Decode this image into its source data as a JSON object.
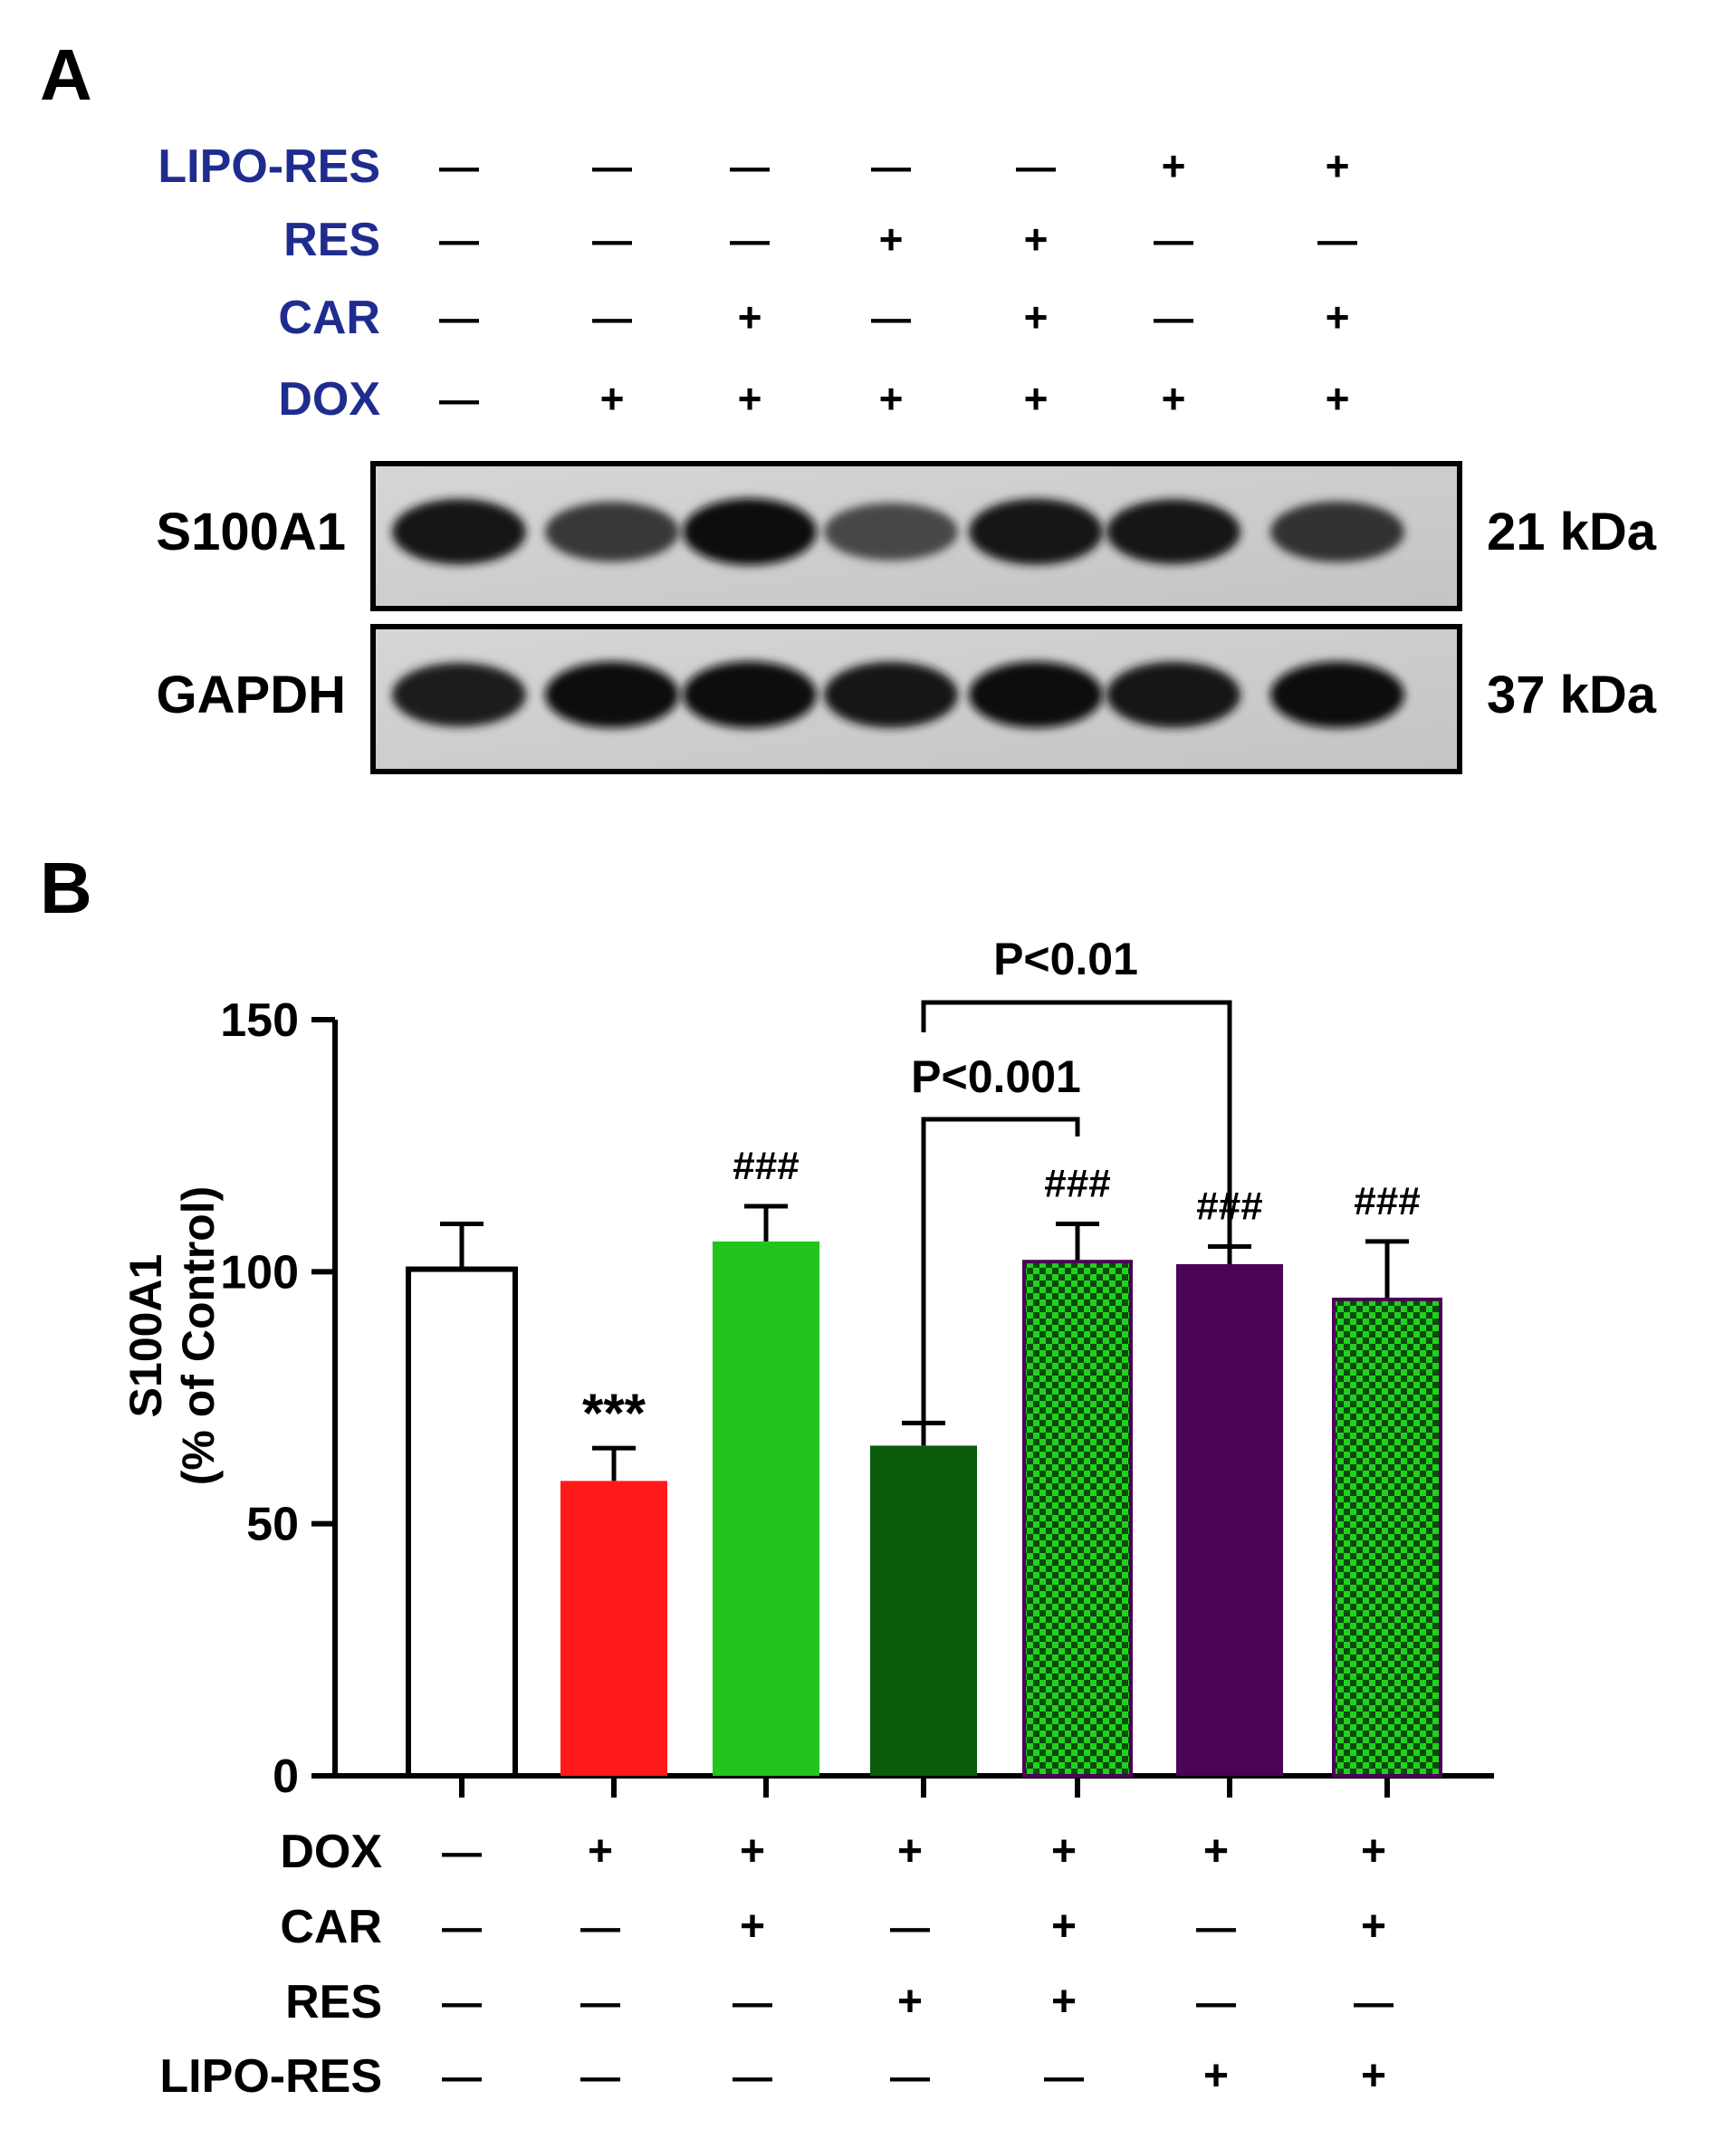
{
  "colors": {
    "label_blue": "#1f2c8f",
    "black": "#000000",
    "red": "#ff1a1a",
    "light_green": "#22c41e",
    "dark_green": "#0a5c0c",
    "purple": "#4a0356",
    "checker_green": "#22d11e",
    "checker_dark": "#0a4a0a"
  },
  "panel_a": {
    "panel_label": "A",
    "treatments": [
      {
        "name": "LIPO-RES",
        "marks": [
          "—",
          "—",
          "—",
          "—",
          "—",
          "+",
          "+"
        ]
      },
      {
        "name": "RES",
        "marks": [
          "—",
          "—",
          "—",
          "+",
          "+",
          "—",
          "—"
        ]
      },
      {
        "name": "CAR",
        "marks": [
          "—",
          "—",
          "+",
          "—",
          "+",
          "—",
          "+"
        ]
      },
      {
        "name": "DOX",
        "marks": [
          "—",
          "+",
          "+",
          "+",
          "+",
          "+",
          "+"
        ]
      }
    ],
    "blots": [
      {
        "protein": "S100A1",
        "size": "21 kDa",
        "band_intensity": [
          0.92,
          0.78,
          0.95,
          0.72,
          0.93,
          0.9,
          0.8
        ]
      },
      {
        "protein": "GAPDH",
        "size": "37 kDa",
        "band_intensity": [
          0.88,
          0.94,
          0.95,
          0.93,
          0.94,
          0.93,
          0.94
        ]
      }
    ]
  },
  "panel_b": {
    "panel_label": "B",
    "comparisons": [
      {
        "text": "P<0.01",
        "from_group": 4,
        "to_group": 6
      },
      {
        "text": "P<0.001",
        "from_group": 4,
        "to_group": 5
      }
    ],
    "treatments": [
      {
        "name": "DOX",
        "marks": [
          "—",
          "+",
          "+",
          "+",
          "+",
          "+",
          "+"
        ]
      },
      {
        "name": "CAR",
        "marks": [
          "—",
          "—",
          "+",
          "—",
          "+",
          "—",
          "+"
        ]
      },
      {
        "name": "RES",
        "marks": [
          "—",
          "—",
          "—",
          "+",
          "+",
          "—",
          "—"
        ]
      },
      {
        "name": "LIPO-RES",
        "marks": [
          "—",
          "—",
          "—",
          "—",
          "—",
          "+",
          "+"
        ]
      }
    ]
  },
  "chart_data": {
    "type": "bar",
    "ylabel_line1": "S100A1",
    "ylabel_line2": "(% of Control)",
    "ylim": [
      0,
      150
    ],
    "yticks": [
      0,
      50,
      100,
      150
    ],
    "grid": false,
    "bars": [
      {
        "value": 100.5,
        "error": 9,
        "fill": "white",
        "annotation": ""
      },
      {
        "value": 58.5,
        "error": 6.5,
        "fill": "red",
        "annotation": "***"
      },
      {
        "value": 106,
        "error": 7,
        "fill": "light_green",
        "annotation": "###"
      },
      {
        "value": 65.5,
        "error": 4.5,
        "fill": "dark_green",
        "annotation": ""
      },
      {
        "value": 102,
        "error": 7.5,
        "fill": "checker",
        "annotation": "###"
      },
      {
        "value": 101.5,
        "error": 3.5,
        "fill": "purple",
        "annotation": "###"
      },
      {
        "value": 94.5,
        "error": 11.5,
        "fill": "checker",
        "annotation": "###"
      }
    ]
  }
}
